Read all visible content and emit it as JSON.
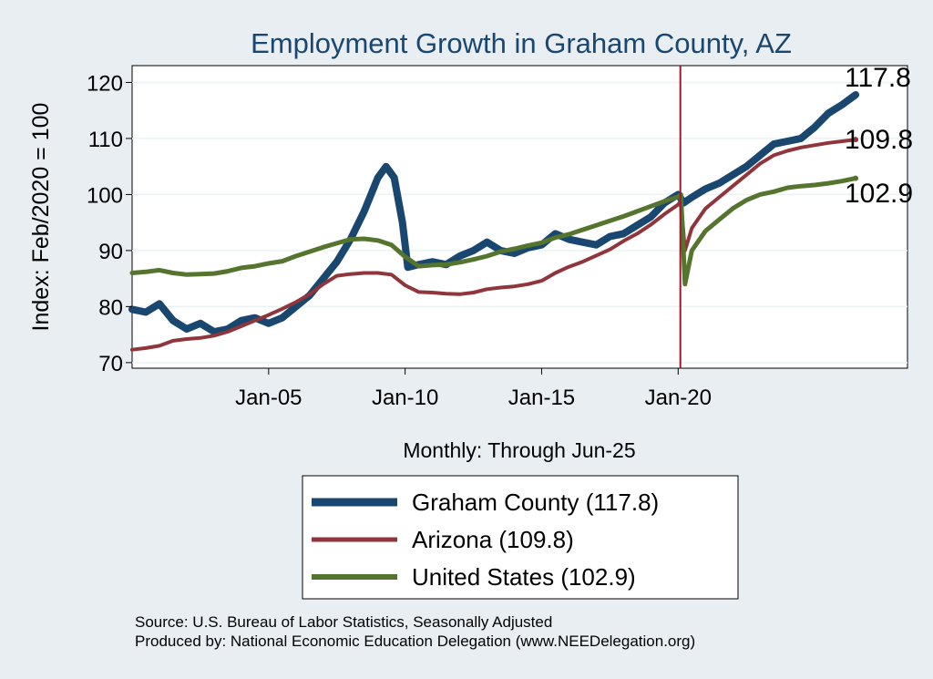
{
  "chart_data": {
    "type": "line",
    "title": "Employment Growth in Graham  County, AZ",
    "xlabel": "Monthly: Through Jun-25",
    "ylabel": "Index: Feb/2020 = 100",
    "ylim": [
      69,
      123
    ],
    "yticks": [
      70,
      80,
      90,
      100,
      110,
      120
    ],
    "xlim": [
      2000.0,
      2028.4
    ],
    "xticks": [
      {
        "label": "Jan-05",
        "value": 2005.0
      },
      {
        "label": "Jan-10",
        "value": 2010.0
      },
      {
        "label": "Jan-15",
        "value": 2015.0
      },
      {
        "label": "Jan-20",
        "value": 2020.0
      }
    ],
    "reference_line": {
      "x": 2020.08,
      "color": "#a0182d"
    },
    "grid": "horizontal",
    "end_labels": [
      "117.8",
      "109.8",
      "102.9"
    ],
    "series": [
      {
        "name": "Graham  County",
        "legend": "Graham  County (117.8)",
        "color": "#1a476f",
        "points": [
          [
            2000.0,
            79.5
          ],
          [
            2000.5,
            79.0
          ],
          [
            2001.0,
            80.5
          ],
          [
            2001.5,
            77.5
          ],
          [
            2002.0,
            76.0
          ],
          [
            2002.5,
            77.0
          ],
          [
            2003.0,
            75.5
          ],
          [
            2003.5,
            76.0
          ],
          [
            2004.0,
            77.5
          ],
          [
            2004.5,
            78.0
          ],
          [
            2005.0,
            77.0
          ],
          [
            2005.5,
            78.0
          ],
          [
            2006.0,
            80.0
          ],
          [
            2006.5,
            82.0
          ],
          [
            2007.0,
            85.0
          ],
          [
            2007.5,
            88.0
          ],
          [
            2008.0,
            92.0
          ],
          [
            2008.5,
            97.0
          ],
          [
            2009.0,
            103.0
          ],
          [
            2009.3,
            105.0
          ],
          [
            2009.6,
            103.0
          ],
          [
            2009.9,
            95.0
          ],
          [
            2010.1,
            87.0
          ],
          [
            2010.5,
            87.5
          ],
          [
            2011.0,
            88.0
          ],
          [
            2011.5,
            87.5
          ],
          [
            2012.0,
            89.0
          ],
          [
            2012.5,
            90.0
          ],
          [
            2013.0,
            91.5
          ],
          [
            2013.5,
            90.0
          ],
          [
            2014.0,
            89.5
          ],
          [
            2014.5,
            90.5
          ],
          [
            2015.0,
            91.0
          ],
          [
            2015.5,
            93.0
          ],
          [
            2016.0,
            92.0
          ],
          [
            2016.5,
            91.5
          ],
          [
            2017.0,
            91.0
          ],
          [
            2017.5,
            92.5
          ],
          [
            2018.0,
            93.0
          ],
          [
            2018.5,
            94.5
          ],
          [
            2019.0,
            96.0
          ],
          [
            2019.5,
            98.5
          ],
          [
            2020.0,
            100.0
          ],
          [
            2020.2,
            98.5
          ],
          [
            2020.5,
            99.5
          ],
          [
            2021.0,
            101.0
          ],
          [
            2021.5,
            102.0
          ],
          [
            2022.0,
            103.5
          ],
          [
            2022.5,
            105.0
          ],
          [
            2023.0,
            107.0
          ],
          [
            2023.5,
            109.0
          ],
          [
            2024.0,
            109.5
          ],
          [
            2024.5,
            110.0
          ],
          [
            2025.0,
            112.0
          ],
          [
            2025.5,
            114.5
          ],
          [
            2026.0,
            116.0
          ],
          [
            2026.5,
            117.8
          ]
        ]
      },
      {
        "name": "Arizona",
        "legend": "Arizona (109.8)",
        "color": "#90353b",
        "points": [
          [
            2000.0,
            72.3
          ],
          [
            2000.5,
            72.6
          ],
          [
            2001.0,
            73.0
          ],
          [
            2001.5,
            73.9
          ],
          [
            2002.0,
            74.2
          ],
          [
            2002.5,
            74.4
          ],
          [
            2003.0,
            74.8
          ],
          [
            2003.5,
            75.5
          ],
          [
            2004.0,
            76.5
          ],
          [
            2004.5,
            77.5
          ],
          [
            2005.0,
            78.5
          ],
          [
            2005.5,
            79.6
          ],
          [
            2006.0,
            80.8
          ],
          [
            2006.5,
            82.2
          ],
          [
            2007.0,
            84.0
          ],
          [
            2007.5,
            85.5
          ],
          [
            2008.0,
            85.8
          ],
          [
            2008.5,
            86.0
          ],
          [
            2009.0,
            86.0
          ],
          [
            2009.5,
            85.7
          ],
          [
            2010.0,
            83.8
          ],
          [
            2010.5,
            82.6
          ],
          [
            2011.0,
            82.5
          ],
          [
            2011.5,
            82.3
          ],
          [
            2012.0,
            82.2
          ],
          [
            2012.5,
            82.5
          ],
          [
            2013.0,
            83.1
          ],
          [
            2013.5,
            83.4
          ],
          [
            2014.0,
            83.6
          ],
          [
            2014.5,
            84.0
          ],
          [
            2015.0,
            84.6
          ],
          [
            2015.5,
            86.0
          ],
          [
            2016.0,
            87.1
          ],
          [
            2016.5,
            88.0
          ],
          [
            2017.0,
            89.1
          ],
          [
            2017.5,
            90.2
          ],
          [
            2018.0,
            91.7
          ],
          [
            2018.5,
            93.0
          ],
          [
            2019.0,
            94.6
          ],
          [
            2019.5,
            96.5
          ],
          [
            2020.0,
            98.2
          ],
          [
            2020.1,
            98.9
          ],
          [
            2020.25,
            90.0
          ],
          [
            2020.5,
            94.0
          ],
          [
            2021.0,
            97.5
          ],
          [
            2021.5,
            99.5
          ],
          [
            2022.0,
            101.5
          ],
          [
            2022.5,
            103.5
          ],
          [
            2023.0,
            105.5
          ],
          [
            2023.5,
            107.0
          ],
          [
            2024.0,
            107.8
          ],
          [
            2024.5,
            108.4
          ],
          [
            2025.0,
            108.8
          ],
          [
            2025.5,
            109.2
          ],
          [
            2026.0,
            109.5
          ],
          [
            2026.5,
            109.8
          ]
        ]
      },
      {
        "name": "United States",
        "legend": "United States (102.9)",
        "color": "#55752f",
        "points": [
          [
            2000.0,
            86.0
          ],
          [
            2000.5,
            86.2
          ],
          [
            2001.0,
            86.5
          ],
          [
            2001.5,
            86.0
          ],
          [
            2002.0,
            85.7
          ],
          [
            2002.5,
            85.8
          ],
          [
            2003.0,
            85.9
          ],
          [
            2003.5,
            86.3
          ],
          [
            2004.0,
            86.9
          ],
          [
            2004.5,
            87.2
          ],
          [
            2005.0,
            87.7
          ],
          [
            2005.5,
            88.1
          ],
          [
            2006.0,
            89.0
          ],
          [
            2006.5,
            89.8
          ],
          [
            2007.0,
            90.6
          ],
          [
            2007.5,
            91.3
          ],
          [
            2008.0,
            92.0
          ],
          [
            2008.5,
            92.1
          ],
          [
            2009.0,
            91.8
          ],
          [
            2009.5,
            91.0
          ],
          [
            2010.0,
            88.9
          ],
          [
            2010.5,
            87.2
          ],
          [
            2011.0,
            87.4
          ],
          [
            2011.5,
            87.5
          ],
          [
            2012.0,
            87.9
          ],
          [
            2012.5,
            88.4
          ],
          [
            2013.0,
            89.0
          ],
          [
            2013.5,
            89.8
          ],
          [
            2014.0,
            90.3
          ],
          [
            2014.5,
            90.9
          ],
          [
            2015.0,
            91.4
          ],
          [
            2015.5,
            92.3
          ],
          [
            2016.0,
            92.9
          ],
          [
            2016.5,
            93.7
          ],
          [
            2017.0,
            94.5
          ],
          [
            2017.5,
            95.3
          ],
          [
            2018.0,
            96.1
          ],
          [
            2018.5,
            97.0
          ],
          [
            2019.0,
            97.9
          ],
          [
            2019.5,
            98.8
          ],
          [
            2020.0,
            99.6
          ],
          [
            2020.1,
            100.0
          ],
          [
            2020.25,
            84.0
          ],
          [
            2020.5,
            90.0
          ],
          [
            2021.0,
            93.5
          ],
          [
            2021.5,
            95.5
          ],
          [
            2022.0,
            97.5
          ],
          [
            2022.5,
            99.0
          ],
          [
            2023.0,
            100.0
          ],
          [
            2023.5,
            100.5
          ],
          [
            2024.0,
            101.2
          ],
          [
            2024.5,
            101.5
          ],
          [
            2025.0,
            101.7
          ],
          [
            2025.5,
            102.0
          ],
          [
            2026.0,
            102.4
          ],
          [
            2026.5,
            102.9
          ]
        ]
      }
    ]
  },
  "notes": {
    "source": "Source: U.S. Bureau of Labor Statistics, Seasonally Adjusted",
    "produced": "Produced by: National Economic Education Delegation (www.NEEDelegation.org)"
  },
  "colors": {
    "background": "#e9eef3",
    "plot_bg": "#ffffff",
    "grid": "#eaf2f3"
  }
}
